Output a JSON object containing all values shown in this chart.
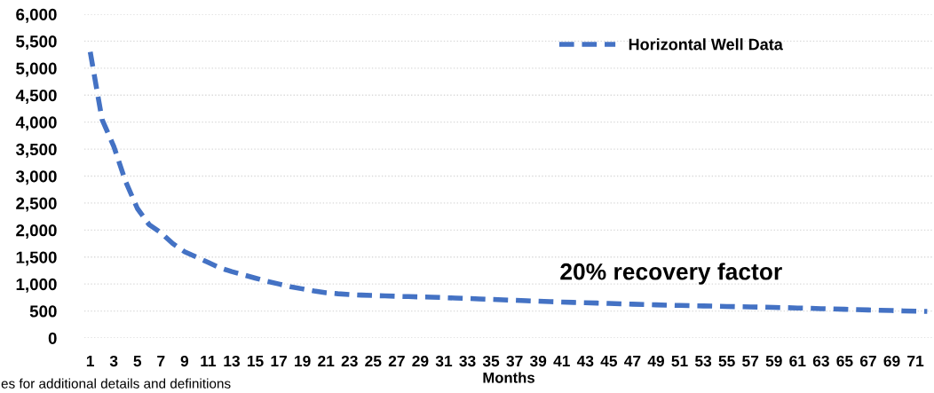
{
  "chart_data": {
    "type": "line",
    "xlabel": "Months",
    "categories": [
      "1",
      null,
      "3",
      null,
      "5",
      null,
      "7",
      null,
      "9",
      null,
      "11",
      null,
      "13",
      null,
      "15",
      null,
      "17",
      null,
      "19",
      null,
      "21",
      null,
      "23",
      null,
      "25",
      null,
      "27",
      null,
      "29",
      null,
      "31",
      null,
      "33",
      null,
      "35",
      null,
      "37",
      null,
      "39",
      null,
      "41",
      null,
      "43",
      null,
      "45",
      null,
      "47",
      null,
      "49",
      null,
      "51",
      null,
      "53",
      null,
      "55",
      null,
      "57",
      null,
      "59",
      null,
      "61",
      null,
      "63",
      null,
      "65",
      null,
      "67",
      null,
      "69",
      null,
      "71",
      null
    ],
    "series": [
      {
        "name": "Horizontal Well Data",
        "color": "#4472c4",
        "values": [
          5300,
          4050,
          3550,
          2900,
          2400,
          2100,
          1950,
          1750,
          1600,
          1500,
          1400,
          1300,
          1230,
          1170,
          1110,
          1050,
          1000,
          950,
          910,
          870,
          840,
          820,
          805,
          795,
          787,
          780,
          773,
          767,
          761,
          756,
          748,
          740,
          732,
          724,
          716,
          708,
          699,
          691,
          682,
          674,
          667,
          660,
          654,
          647,
          640,
          634,
          627,
          621,
          614,
          608,
          603,
          598,
          594,
          589,
          585,
          580,
          576,
          571,
          567,
          562,
          556,
          550,
          544,
          538,
          532,
          526,
          520,
          514,
          508,
          502,
          497,
          493
        ]
      }
    ],
    "ylim": [
      0,
      6000
    ],
    "yticks": [
      0,
      500,
      {
        "value": 1000,
        "label": "1,000"
      },
      {
        "value": 1500,
        "label": "1,500"
      },
      {
        "value": 2000,
        "label": "2,000"
      },
      {
        "value": 2500,
        "label": "2,500"
      },
      {
        "value": 3000,
        "label": "3,000"
      },
      {
        "value": 3500,
        "label": "3,500"
      },
      {
        "value": 4000,
        "label": "4,000"
      },
      {
        "value": 4500,
        "label": "4,500"
      },
      {
        "value": 5000,
        "label": "5,000"
      },
      {
        "value": 5500,
        "label": "5,500"
      },
      {
        "value": 6000,
        "label": "6,000"
      }
    ],
    "grid": "y",
    "legend": "top right",
    "marker": "none",
    "line_style": "dashed",
    "annotations": [
      "20% recovery factor",
      "es for additional details and definitions"
    ]
  }
}
